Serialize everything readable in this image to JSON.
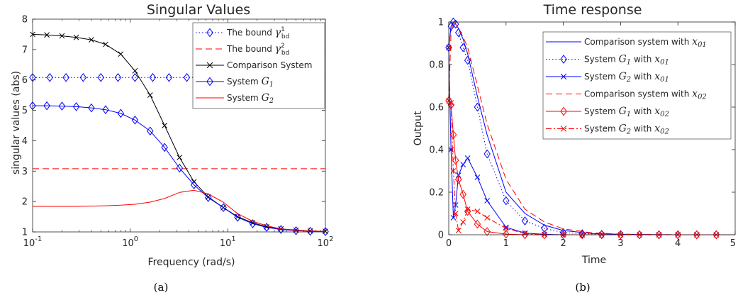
{
  "chart_data": [
    {
      "type": "line",
      "panel": "(a)",
      "title": "Singular Values",
      "xlabel": "Frequency (rad/s)",
      "ylabel": "singular values (abs)",
      "xscale": "log",
      "xlim": [
        0.1,
        100
      ],
      "ylim": [
        1,
        8
      ],
      "xticks": [
        0.1,
        1,
        10,
        100
      ],
      "xtick_labels": [
        {
          "base": "10",
          "exp": "-1"
        },
        {
          "base": "10",
          "exp": "0"
        },
        {
          "base": "10",
          "exp": "1"
        },
        {
          "base": "10",
          "exp": "2"
        }
      ],
      "yticks": [
        1,
        2,
        3,
        4,
        5,
        6,
        7,
        8
      ],
      "ytick_labels": [
        "1",
        "2",
        "3",
        "4",
        "5",
        "6",
        "7",
        "8"
      ],
      "grid": false,
      "legend_position": "top-right",
      "legend": [
        {
          "label": "The bound",
          "math_base": "γ",
          "math_sup": "1",
          "math_sub": "bd",
          "color": "#0000ff",
          "dash": "dotted",
          "marker": "diamond"
        },
        {
          "label": "The bound",
          "math_base": "γ",
          "math_sup": "2",
          "math_sub": "bd",
          "color": "#ff0000",
          "dash": "dashed",
          "marker": "none"
        },
        {
          "label": "Comparison System",
          "color": "#000000",
          "dash": "solid",
          "marker": "x"
        },
        {
          "label": "System",
          "math_base": "G",
          "math_sub": "1",
          "color": "#0000ff",
          "dash": "solid",
          "marker": "diamond"
        },
        {
          "label": "System",
          "math_base": "G",
          "math_sub": "2",
          "color": "#ff0000",
          "dash": "solid",
          "marker": "none"
        }
      ],
      "series": [
        {
          "name": "The bound γ¹bd",
          "color": "#0000ff",
          "dash": "dotted",
          "marker": "diamond",
          "x": [
            0.1,
            0.14,
            0.2,
            0.28,
            0.4,
            0.56,
            0.8,
            1.12,
            1.6,
            2.25,
            3.2,
            4.5,
            6.3,
            9,
            12.6,
            18,
            25,
            35,
            50,
            70,
            100
          ],
          "y": [
            6.08,
            6.08,
            6.08,
            6.08,
            6.08,
            6.08,
            6.08,
            6.08,
            6.08,
            6.08,
            6.08,
            6.08,
            6.08,
            6.08,
            6.08,
            6.08,
            6.08,
            6.08,
            6.08,
            6.08,
            6.08
          ],
          "marker_x": [
            0.1,
            0.15,
            0.22,
            0.33,
            0.5,
            0.75,
            1.12,
            1.7,
            2.5,
            3.8
          ]
        },
        {
          "name": "The bound γ²bd",
          "color": "#ff0000",
          "dash": "dashed",
          "marker": "none",
          "x": [
            0.1,
            100
          ],
          "y": [
            3.08,
            3.08
          ]
        },
        {
          "name": "Comparison System",
          "color": "#000000",
          "dash": "solid",
          "marker": "x",
          "x": [
            0.1,
            0.14,
            0.2,
            0.28,
            0.4,
            0.56,
            0.8,
            1.12,
            1.6,
            2.25,
            3.2,
            4.5,
            6.3,
            9,
            12.6,
            18,
            25,
            35,
            50,
            70,
            100
          ],
          "y": [
            7.5,
            7.48,
            7.45,
            7.4,
            7.32,
            7.17,
            6.85,
            6.3,
            5.5,
            4.5,
            3.45,
            2.65,
            2.15,
            1.8,
            1.5,
            1.3,
            1.17,
            1.1,
            1.06,
            1.03,
            1.02
          ],
          "marker_x": [
            0.1,
            0.14,
            0.2,
            0.28,
            0.4,
            0.56,
            0.8,
            1.12,
            1.6,
            2.25,
            3.2,
            4.5,
            6.3,
            9,
            12.6,
            18,
            25,
            35,
            50,
            70,
            100
          ]
        },
        {
          "name": "System G1",
          "color": "#0000ff",
          "dash": "solid",
          "marker": "diamond",
          "x": [
            0.1,
            0.14,
            0.2,
            0.28,
            0.4,
            0.56,
            0.8,
            1.12,
            1.6,
            2.25,
            3.2,
            4.5,
            6.3,
            9,
            12.6,
            18,
            25,
            35,
            50,
            70,
            100
          ],
          "y": [
            5.15,
            5.15,
            5.14,
            5.12,
            5.08,
            5.02,
            4.9,
            4.68,
            4.32,
            3.78,
            3.1,
            2.55,
            2.13,
            1.8,
            1.48,
            1.27,
            1.15,
            1.08,
            1.04,
            1.02,
            1.01
          ],
          "marker_x": [
            0.1,
            0.14,
            0.2,
            0.28,
            0.4,
            0.56,
            0.8,
            1.12,
            1.6,
            2.25,
            3.2,
            4.5,
            6.3,
            9,
            12.6,
            18,
            25,
            35,
            50,
            70,
            100
          ]
        },
        {
          "name": "System G2",
          "color": "#ff0000",
          "dash": "solid",
          "marker": "none",
          "x": [
            0.1,
            0.14,
            0.2,
            0.28,
            0.4,
            0.56,
            0.8,
            1.12,
            1.6,
            2.25,
            3.2,
            4.5,
            6.3,
            9,
            12.6,
            18,
            25,
            35,
            50,
            70,
            100
          ],
          "y": [
            1.84,
            1.84,
            1.84,
            1.84,
            1.85,
            1.86,
            1.88,
            1.91,
            1.98,
            2.1,
            2.3,
            2.37,
            2.25,
            1.98,
            1.6,
            1.35,
            1.2,
            1.1,
            1.05,
            1.03,
            1.02
          ]
        }
      ]
    },
    {
      "type": "line",
      "panel": "(b)",
      "title": "Time response",
      "xlabel": "Time",
      "ylabel": "Output",
      "xlim": [
        0,
        5
      ],
      "ylim": [
        0,
        1
      ],
      "xticks": [
        0,
        1,
        2,
        3,
        4,
        5
      ],
      "xtick_labels": [
        "0",
        "1",
        "2",
        "3",
        "4",
        "5"
      ],
      "yticks": [
        0,
        0.2,
        0.4,
        0.6,
        0.8,
        1
      ],
      "ytick_labels": [
        "0",
        "0.2",
        "0.4",
        "0.6",
        "0.8",
        "1"
      ],
      "grid": false,
      "legend_position": "top-right",
      "legend": [
        {
          "label": "Comparison system with",
          "math_base": "x",
          "math_sub": "01",
          "color": "#0000ff",
          "dash": "solid",
          "marker": "none"
        },
        {
          "label": "System",
          "math_base": "G",
          "math_sub": "1",
          "label2": "with",
          "math2_base": "x",
          "math2_sub": "01",
          "color": "#0000ff",
          "dash": "dotted",
          "marker": "diamond"
        },
        {
          "label": "System",
          "math_base": "G",
          "math_sub": "2",
          "label2": "with",
          "math2_base": "x",
          "math2_sub": "01",
          "color": "#0000ff",
          "dash": "solid",
          "marker": "x"
        },
        {
          "label": "Comparison system with",
          "math_base": "x",
          "math_sub": "02",
          "color": "#ff0000",
          "dash": "dashed",
          "marker": "none"
        },
        {
          "label": "System",
          "math_base": "G",
          "math_sub": "1",
          "label2": "with",
          "math2_base": "x",
          "math2_sub": "02",
          "color": "#ff0000",
          "dash": "solid",
          "marker": "diamond"
        },
        {
          "label": "System",
          "math_base": "G",
          "math_sub": "2",
          "label2": "with",
          "math2_base": "x",
          "math2_sub": "02",
          "color": "#ff0000",
          "dash": "dashdot",
          "marker": "x"
        }
      ],
      "series": [
        {
          "name": "Comparison system with x01",
          "color": "#0000ff",
          "dash": "solid",
          "marker": "none",
          "x": [
            0,
            0.04,
            0.08,
            0.12,
            0.17,
            0.25,
            0.33,
            0.5,
            0.67,
            1,
            1.33,
            1.67,
            2,
            2.5,
            3,
            4,
            5
          ],
          "y": [
            0.88,
            0.98,
            1.0,
            0.99,
            0.97,
            0.92,
            0.85,
            0.65,
            0.47,
            0.2,
            0.1,
            0.045,
            0.02,
            0.006,
            0.002,
            0,
            0
          ]
        },
        {
          "name": "System G1 with x01",
          "color": "#0000ff",
          "dash": "dotted",
          "marker": "diamond",
          "x": [
            0,
            0.04,
            0.08,
            0.12,
            0.17,
            0.25,
            0.33,
            0.5,
            0.67,
            1,
            1.33,
            1.67,
            2,
            2.33,
            2.67,
            3,
            3.33,
            3.67,
            4,
            4.33,
            4.67
          ],
          "y": [
            0.88,
            0.98,
            1.0,
            0.99,
            0.95,
            0.88,
            0.82,
            0.6,
            0.38,
            0.16,
            0.065,
            0.03,
            0.01,
            0.005,
            0.002,
            0.001,
            0,
            0,
            0,
            0,
            0
          ]
        },
        {
          "name": "System G2 with x01",
          "color": "#0000ff",
          "dash": "solid",
          "marker": "x",
          "x": [
            0,
            0.04,
            0.08,
            0.12,
            0.17,
            0.25,
            0.33,
            0.5,
            0.67,
            1,
            1.33,
            1.67,
            2,
            2.33,
            2.67,
            3,
            3.33,
            3.67,
            4,
            4.33,
            4.67
          ],
          "y": [
            0.88,
            0.4,
            0.08,
            0.14,
            0.28,
            0.33,
            0.36,
            0.27,
            0.16,
            0.035,
            0.008,
            0.002,
            0,
            0,
            0,
            0,
            0,
            0,
            0,
            0,
            0
          ]
        },
        {
          "name": "Comparison system with x02",
          "color": "#ff0000",
          "dash": "dashed",
          "marker": "none",
          "x": [
            0,
            0.04,
            0.08,
            0.12,
            0.17,
            0.25,
            0.33,
            0.5,
            0.67,
            1,
            1.33,
            1.67,
            2,
            2.5,
            3,
            4,
            5
          ],
          "y": [
            0.63,
            0.95,
            1.0,
            0.99,
            0.97,
            0.93,
            0.88,
            0.7,
            0.52,
            0.26,
            0.12,
            0.06,
            0.028,
            0.009,
            0.003,
            0,
            0
          ]
        },
        {
          "name": "System G1 with x02",
          "color": "#ff0000",
          "dash": "solid",
          "marker": "diamond",
          "x": [
            0,
            0.04,
            0.08,
            0.12,
            0.17,
            0.25,
            0.33,
            0.5,
            0.67,
            1,
            1.33,
            1.67,
            2,
            2.33,
            2.67,
            3,
            3.33,
            3.67,
            4,
            4.33,
            4.67
          ],
          "y": [
            0.63,
            0.61,
            0.47,
            0.35,
            0.26,
            0.19,
            0.11,
            0.05,
            0.015,
            0.003,
            0,
            0,
            0,
            0,
            0,
            0,
            0,
            0,
            0,
            0,
            0
          ]
        },
        {
          "name": "System G2 with x02",
          "color": "#ff0000",
          "dash": "dashdot",
          "marker": "x",
          "x": [
            0,
            0.04,
            0.08,
            0.12,
            0.17,
            0.25,
            0.33,
            0.5,
            0.67,
            1,
            1.33,
            1.67,
            2,
            2.33,
            2.67,
            3,
            3.33,
            3.67,
            4,
            4.33,
            4.67
          ],
          "y": [
            0.63,
            0.62,
            0.3,
            0.1,
            0.02,
            0.06,
            0.12,
            0.11,
            0.08,
            0.03,
            0.005,
            0,
            0,
            0,
            0,
            0,
            0,
            0,
            0,
            0,
            0
          ]
        }
      ]
    }
  ],
  "captions": [
    "(a)",
    "(b)"
  ]
}
